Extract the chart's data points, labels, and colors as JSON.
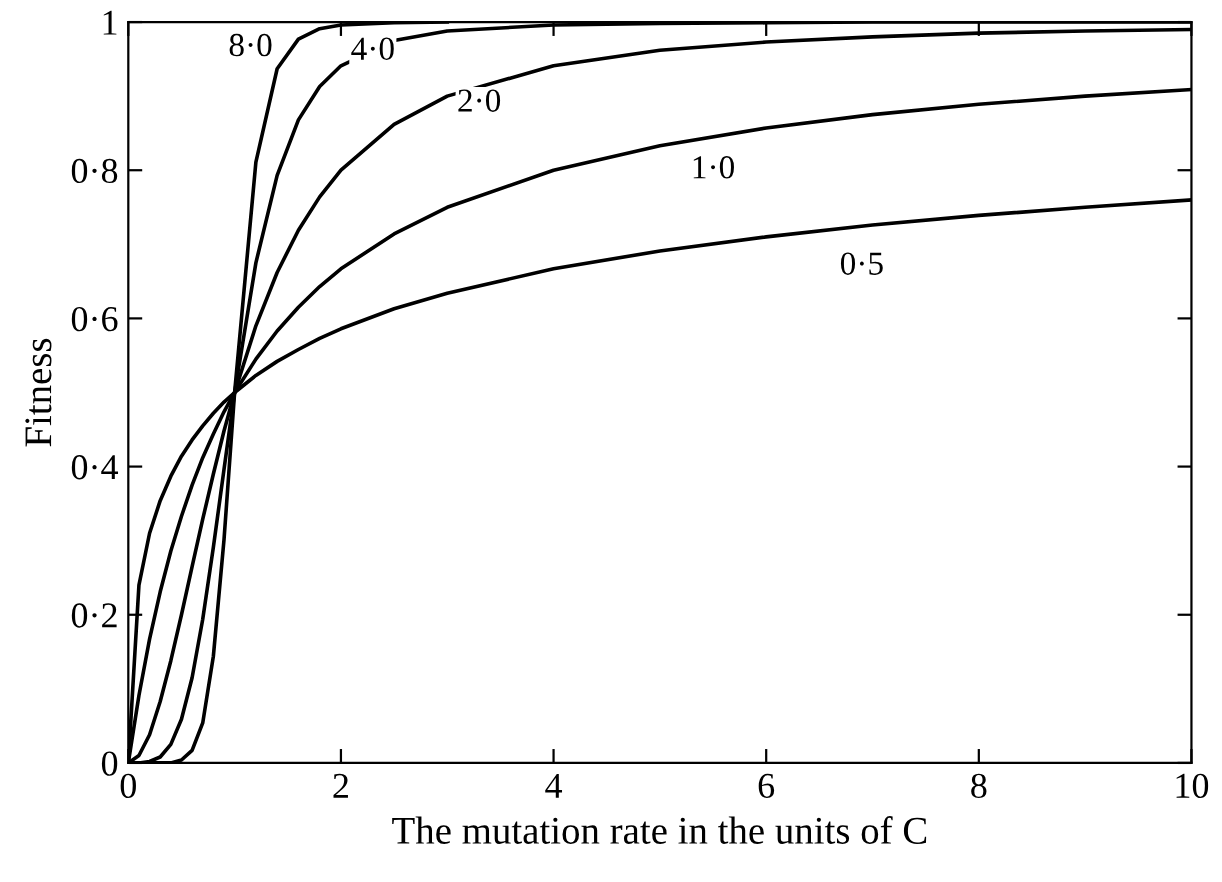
{
  "chart_data": {
    "type": "line",
    "xlabel": "The mutation rate in the units of C",
    "ylabel": "Fitness",
    "x": [
      0,
      0.1,
      0.2,
      0.3,
      0.4,
      0.5,
      0.6,
      0.7,
      0.8,
      0.9,
      1,
      1.2,
      1.4,
      1.6,
      1.8,
      2,
      2.5,
      3,
      4,
      5,
      6,
      7,
      8,
      9,
      10
    ],
    "series": [
      {
        "color": "#000000",
        "values": [
          0,
          0.24,
          0.31,
          0.354,
          0.387,
          0.414,
          0.436,
          0.455,
          0.472,
          0.487,
          0.5,
          0.523,
          0.542,
          0.558,
          0.573,
          0.586,
          0.613,
          0.634,
          0.667,
          0.691,
          0.71,
          0.726,
          0.739,
          0.75,
          0.76
        ]
      },
      {
        "color": "#000000",
        "values": [
          0,
          0.091,
          0.167,
          0.231,
          0.286,
          0.333,
          0.375,
          0.412,
          0.444,
          0.474,
          0.5,
          0.545,
          0.583,
          0.615,
          0.643,
          0.667,
          0.714,
          0.75,
          0.8,
          0.833,
          0.857,
          0.875,
          0.889,
          0.9,
          0.909
        ]
      },
      {
        "color": "#000000",
        "values": [
          0,
          0.01,
          0.038,
          0.083,
          0.138,
          0.2,
          0.265,
          0.329,
          0.39,
          0.448,
          0.5,
          0.59,
          0.662,
          0.719,
          0.764,
          0.8,
          0.862,
          0.9,
          0.941,
          0.962,
          0.973,
          0.98,
          0.985,
          0.988,
          0.99
        ]
      },
      {
        "color": "#000000",
        "values": [
          0,
          0,
          0.002,
          0.008,
          0.025,
          0.059,
          0.115,
          0.194,
          0.291,
          0.396,
          0.5,
          0.675,
          0.793,
          0.868,
          0.913,
          0.941,
          0.975,
          0.988,
          0.996,
          0.998,
          0.999,
          1,
          1,
          1,
          1
        ]
      },
      {
        "color": "#000000",
        "x": [
          0,
          0.1,
          0.2,
          0.3,
          0.4,
          0.5,
          0.6,
          0.7,
          0.8,
          0.9,
          1,
          1.2,
          1.4,
          1.6,
          1.8,
          2,
          2.5,
          3
        ],
        "values": [
          0,
          0,
          0,
          0,
          0,
          0.004,
          0.017,
          0.054,
          0.144,
          0.301,
          0.5,
          0.811,
          0.937,
          0.977,
          0.991,
          0.996,
          0.999,
          1
        ]
      }
    ],
    "annotations": [
      {
        "text": "8·0",
        "x": 1.15,
        "y": 0.965
      },
      {
        "text": "4·0",
        "x": 2.3,
        "y": 0.96
      },
      {
        "text": "2·0",
        "x": 3.3,
        "y": 0.89
      },
      {
        "text": "1·0",
        "x": 5.5,
        "y": 0.8
      },
      {
        "text": "0·5",
        "x": 6.9,
        "y": 0.67
      }
    ],
    "xlim": [
      0,
      10
    ],
    "ylim": [
      0,
      1
    ],
    "xticks": [
      0,
      2,
      4,
      6,
      8,
      10
    ],
    "yticks": [
      0,
      {
        "value": 0.2,
        "label": "0·2"
      },
      {
        "value": 0.4,
        "label": "0·4"
      },
      {
        "value": 0.6,
        "label": "0·6"
      },
      {
        "value": 0.8,
        "label": "0·8"
      },
      1
    ],
    "grid": false,
    "legend": false,
    "marker": "none",
    "line_style": "solid"
  }
}
